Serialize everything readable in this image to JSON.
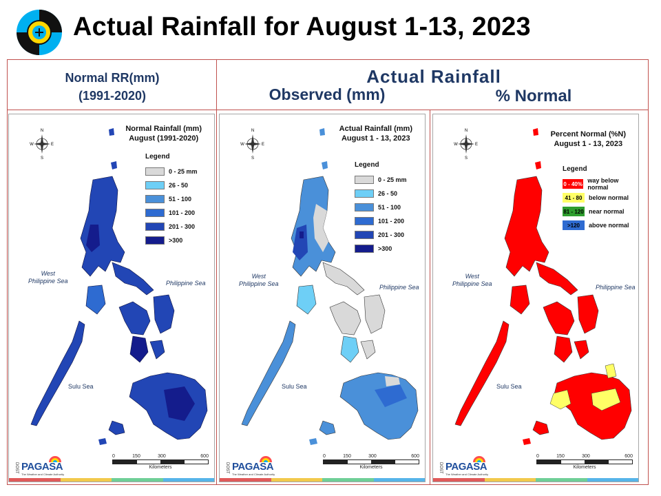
{
  "slide": {
    "title": "Actual Rainfall for August 1-13, 2023"
  },
  "headers": {
    "left_line1": "Normal RR(mm)",
    "left_line2": "(1991-2020)",
    "actual": "Actual Rainfall",
    "observed": "Observed (mm)",
    "percent": "% Normal"
  },
  "panels": [
    {
      "title_line1": "Normal Rainfall (mm)",
      "title_line2": "August (1991-2020)",
      "legend_title": "Legend",
      "legend": [
        {
          "label": "0 - 25 mm",
          "color": "#d9d9d9"
        },
        {
          "label": "26 - 50",
          "color": "#6ecff6"
        },
        {
          "label": "51 - 100",
          "color": "#4a90d9"
        },
        {
          "label": "101 - 200",
          "color": "#2e6bd1"
        },
        {
          "label": "201 - 300",
          "color": "#2246b5"
        },
        {
          "label": ">300",
          "color": "#141c8c"
        }
      ],
      "seas": {
        "west_1": "West",
        "west_2": "Philippine Sea",
        "east": "Philippine Sea",
        "sulu": "Sulu Sea"
      },
      "scale": {
        "s0": "0",
        "s1": "150",
        "s2": "300",
        "s3": "600",
        "unit": "Kilometers"
      }
    },
    {
      "title_line1": "Actual Rainfall (mm)",
      "title_line2": "August 1 - 13, 2023",
      "legend_title": "Legend",
      "legend": [
        {
          "label": "0 - 25 mm",
          "color": "#d9d9d9"
        },
        {
          "label": "26 - 50",
          "color": "#6ecff6"
        },
        {
          "label": "51 - 100",
          "color": "#4a90d9"
        },
        {
          "label": "101 - 200",
          "color": "#2e6bd1"
        },
        {
          "label": "201 - 300",
          "color": "#2246b5"
        },
        {
          "label": ">300",
          "color": "#141c8c"
        }
      ],
      "seas": {
        "west_1": "West",
        "west_2": "Philippine Sea",
        "east": "Philippine Sea",
        "sulu": "Sulu Sea"
      },
      "scale": {
        "s0": "0",
        "s1": "150",
        "s2": "300",
        "s3": "600",
        "unit": "Kilometers"
      }
    },
    {
      "title_line1": "Percent Normal (%N)",
      "title_line2": "August 1 - 13, 2023",
      "legend_title": "Legend",
      "legend": [
        {
          "range": "0 - 40%",
          "label": "way below normal",
          "color": "#ff0000",
          "text_color": "#ffffff"
        },
        {
          "range": "41 - 80",
          "label": "below normal",
          "color": "#ffff66",
          "text_color": "#000000"
        },
        {
          "range": "81 - 120",
          "label": "near normal",
          "color": "#2e9e2e",
          "text_color": "#000000"
        },
        {
          "range": ">120",
          "label": "above normal",
          "color": "#2e6bd1",
          "text_color": "#000000"
        }
      ],
      "seas": {
        "west_1": "West",
        "west_2": "Philippine Sea",
        "east": "Philippine Sea",
        "sulu": "Sulu Sea"
      },
      "scale": {
        "s0": "0",
        "s1": "150",
        "s2": "300",
        "s3": "600",
        "unit": "Kilometers"
      }
    }
  ],
  "compass": {
    "n": "N",
    "s": "S",
    "e": "E",
    "w": "W"
  },
  "brand": {
    "name": "PAGASA",
    "agency": "DOST",
    "tagline": "The Weather and Climate Authority"
  },
  "colors": {
    "title": "#000000",
    "header": "#1f3864",
    "frame": "#c0504d",
    "normal_fill": "#2246b5",
    "normal_fill_dark": "#141c8c",
    "actual_fill": "#4a90d9",
    "actual_light": "#d9d9d9",
    "percent_fill": "#ff0000",
    "percent_yellow": "#ffff66"
  }
}
